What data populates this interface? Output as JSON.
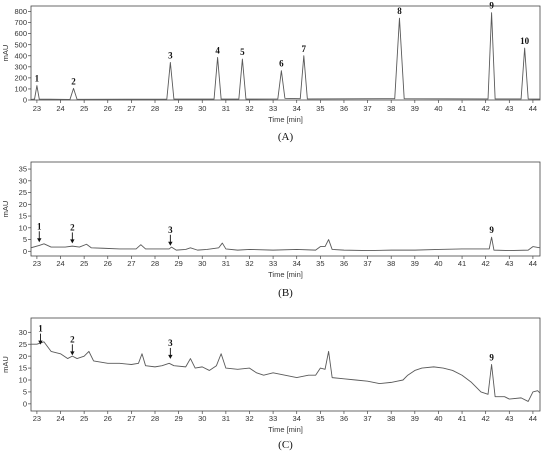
{
  "chart_data": [
    {
      "type": "line",
      "panel_label": "(A)",
      "xlabel": "Time [min]",
      "ylabel": "mAU",
      "xlim": [
        22.75,
        44.3
      ],
      "ylim": [
        0,
        850
      ],
      "x_ticks": [
        23,
        24,
        25,
        26,
        27,
        28,
        29,
        30,
        31,
        32,
        33,
        34,
        35,
        36,
        37,
        38,
        39,
        40,
        41,
        42,
        43,
        44
      ],
      "y_ticks": [
        0,
        100,
        200,
        300,
        400,
        500,
        600,
        700,
        800
      ],
      "grid": false,
      "baseline": 0,
      "peaks": [
        {
          "label": "1",
          "x": 23.0,
          "y": 130
        },
        {
          "label": "2",
          "x": 24.55,
          "y": 105
        },
        {
          "label": "3",
          "x": 28.65,
          "y": 340
        },
        {
          "label": "4",
          "x": 30.65,
          "y": 385
        },
        {
          "label": "5",
          "x": 31.7,
          "y": 370
        },
        {
          "label": "6",
          "x": 33.35,
          "y": 265
        },
        {
          "label": "7",
          "x": 34.3,
          "y": 400
        },
        {
          "label": "8",
          "x": 38.35,
          "y": 740
        },
        {
          "label": "9",
          "x": 42.25,
          "y": 790
        },
        {
          "label": "10",
          "x": 43.65,
          "y": 470
        }
      ],
      "series": [
        {
          "points": [
            [
              22.75,
              5
            ],
            [
              22.9,
              8
            ],
            [
              23.0,
              130
            ],
            [
              23.1,
              8
            ],
            [
              24.4,
              5
            ],
            [
              24.55,
              105
            ],
            [
              24.7,
              6
            ],
            [
              28.5,
              8
            ],
            [
              28.65,
              340
            ],
            [
              28.8,
              8
            ],
            [
              30.5,
              8
            ],
            [
              30.65,
              385
            ],
            [
              30.8,
              8
            ],
            [
              31.55,
              8
            ],
            [
              31.7,
              370
            ],
            [
              31.85,
              8
            ],
            [
              33.2,
              10
            ],
            [
              33.35,
              265
            ],
            [
              33.5,
              15
            ],
            [
              34.15,
              12
            ],
            [
              34.3,
              400
            ],
            [
              34.45,
              10
            ],
            [
              38.15,
              12
            ],
            [
              38.35,
              740
            ],
            [
              38.55,
              12
            ],
            [
              42.1,
              10
            ],
            [
              42.25,
              790
            ],
            [
              42.4,
              10
            ],
            [
              43.5,
              10
            ],
            [
              43.65,
              470
            ],
            [
              43.8,
              10
            ],
            [
              44.3,
              8
            ]
          ]
        }
      ]
    },
    {
      "type": "line",
      "panel_label": "(B)",
      "xlabel": "Time [min]",
      "ylabel": "mAU",
      "xlim": [
        22.75,
        44.3
      ],
      "ylim": [
        -2,
        38
      ],
      "x_ticks": [
        23,
        24,
        25,
        26,
        27,
        28,
        29,
        30,
        31,
        32,
        33,
        34,
        35,
        36,
        37,
        38,
        39,
        40,
        41,
        42,
        43,
        44
      ],
      "y_ticks": [
        0,
        5,
        10,
        15,
        20,
        25,
        30,
        35
      ],
      "grid": false,
      "peaks": [
        {
          "label": "1",
          "x": 23.1,
          "y": 3,
          "arrow": true
        },
        {
          "label": "2",
          "x": 24.5,
          "y": 2.5,
          "arrow": true
        },
        {
          "label": "3",
          "x": 28.65,
          "y": 1.5,
          "arrow": true
        },
        {
          "label": "9",
          "x": 42.25,
          "y": 6,
          "arrow": false
        }
      ],
      "series": [
        {
          "points": [
            [
              22.75,
              1.5
            ],
            [
              23.1,
              2.5
            ],
            [
              23.3,
              3.2
            ],
            [
              23.6,
              1.8
            ],
            [
              24.2,
              1.8
            ],
            [
              24.5,
              2.2
            ],
            [
              24.8,
              1.8
            ],
            [
              25.1,
              3
            ],
            [
              25.3,
              1.5
            ],
            [
              25.8,
              1.3
            ],
            [
              26.5,
              1
            ],
            [
              27.2,
              1
            ],
            [
              27.4,
              2.8
            ],
            [
              27.6,
              1
            ],
            [
              28.6,
              1
            ],
            [
              28.7,
              1.8
            ],
            [
              28.9,
              0.5
            ],
            [
              29.3,
              0.8
            ],
            [
              29.5,
              1.5
            ],
            [
              29.8,
              0.5
            ],
            [
              30.2,
              0.8
            ],
            [
              30.7,
              1.5
            ],
            [
              30.85,
              3.5
            ],
            [
              31.0,
              1
            ],
            [
              31.5,
              0.5
            ],
            [
              32.0,
              0.8
            ],
            [
              33.0,
              0.5
            ],
            [
              34.0,
              0.8
            ],
            [
              34.8,
              0.5
            ],
            [
              35.0,
              2
            ],
            [
              35.2,
              2
            ],
            [
              35.35,
              5
            ],
            [
              35.5,
              0.8
            ],
            [
              36.0,
              0.5
            ],
            [
              37.0,
              0.3
            ],
            [
              38.0,
              0.5
            ],
            [
              39.0,
              0.5
            ],
            [
              40.0,
              0.8
            ],
            [
              41.0,
              1
            ],
            [
              42.0,
              1
            ],
            [
              42.15,
              1
            ],
            [
              42.25,
              6
            ],
            [
              42.35,
              0.5
            ],
            [
              43.0,
              0.3
            ],
            [
              43.8,
              0.5
            ],
            [
              44.0,
              2
            ],
            [
              44.3,
              1.5
            ]
          ]
        }
      ]
    },
    {
      "type": "line",
      "panel_label": "(C)",
      "xlabel": "Time [min]",
      "ylabel": "mAU",
      "xlim": [
        22.75,
        44.3
      ],
      "ylim": [
        -3,
        36
      ],
      "x_ticks": [
        23,
        24,
        25,
        26,
        27,
        28,
        29,
        30,
        31,
        32,
        33,
        34,
        35,
        36,
        37,
        38,
        39,
        40,
        41,
        42,
        43,
        44
      ],
      "y_ticks": [
        0,
        5,
        10,
        15,
        20,
        25,
        30
      ],
      "grid": false,
      "peaks": [
        {
          "label": "1",
          "x": 23.15,
          "y": 24,
          "arrow": true
        },
        {
          "label": "2",
          "x": 24.5,
          "y": 19.5,
          "arrow": true
        },
        {
          "label": "3",
          "x": 28.65,
          "y": 18,
          "arrow": true
        },
        {
          "label": "9",
          "x": 42.25,
          "y": 16.5,
          "arrow": false
        }
      ],
      "series": [
        {
          "points": [
            [
              22.75,
              25
            ],
            [
              23.0,
              25
            ],
            [
              23.3,
              26
            ],
            [
              23.6,
              22
            ],
            [
              24.0,
              21
            ],
            [
              24.3,
              19
            ],
            [
              24.5,
              20
            ],
            [
              24.7,
              19
            ],
            [
              25.0,
              20
            ],
            [
              25.2,
              22
            ],
            [
              25.4,
              18
            ],
            [
              26.0,
              17
            ],
            [
              26.5,
              17
            ],
            [
              27.0,
              16.5
            ],
            [
              27.3,
              17
            ],
            [
              27.45,
              21
            ],
            [
              27.6,
              16
            ],
            [
              28.0,
              15.5
            ],
            [
              28.3,
              16
            ],
            [
              28.6,
              17
            ],
            [
              28.8,
              16
            ],
            [
              29.3,
              15.5
            ],
            [
              29.5,
              19
            ],
            [
              29.7,
              15
            ],
            [
              30.0,
              15.5
            ],
            [
              30.3,
              14
            ],
            [
              30.6,
              16
            ],
            [
              30.8,
              21
            ],
            [
              31.0,
              15
            ],
            [
              31.5,
              14.5
            ],
            [
              32.0,
              15
            ],
            [
              32.3,
              13
            ],
            [
              32.6,
              12
            ],
            [
              33.0,
              13
            ],
            [
              33.5,
              12
            ],
            [
              34.0,
              11
            ],
            [
              34.5,
              12
            ],
            [
              34.8,
              12
            ],
            [
              35.0,
              15
            ],
            [
              35.2,
              14.5
            ],
            [
              35.35,
              22
            ],
            [
              35.5,
              11
            ],
            [
              36.0,
              10.5
            ],
            [
              36.5,
              10
            ],
            [
              37.0,
              9.5
            ],
            [
              37.5,
              8.5
            ],
            [
              38.0,
              9
            ],
            [
              38.5,
              10
            ],
            [
              38.7,
              12
            ],
            [
              39.0,
              14
            ],
            [
              39.3,
              15
            ],
            [
              39.8,
              15.5
            ],
            [
              40.2,
              15
            ],
            [
              40.6,
              14
            ],
            [
              41.0,
              12
            ],
            [
              41.4,
              9
            ],
            [
              41.8,
              5
            ],
            [
              42.1,
              4
            ],
            [
              42.25,
              16.5
            ],
            [
              42.4,
              3
            ],
            [
              42.8,
              3
            ],
            [
              43.0,
              2
            ],
            [
              43.5,
              2.5
            ],
            [
              43.8,
              1
            ],
            [
              44.0,
              5
            ],
            [
              44.2,
              5.5
            ],
            [
              44.3,
              4.5
            ]
          ]
        }
      ]
    }
  ]
}
